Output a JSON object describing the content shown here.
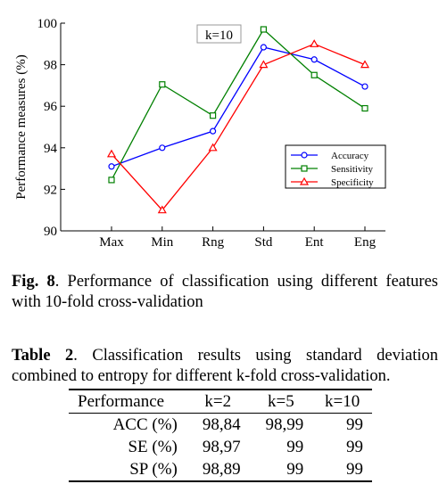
{
  "chart_data": {
    "type": "line",
    "annotation": "k=10",
    "ylabel": "Performance measures (%)",
    "xlabel": "",
    "categories": [
      "Max",
      "Min",
      "Rng",
      "Std",
      "Ent",
      "Eng"
    ],
    "ylim": [
      90,
      100
    ],
    "yticks": [
      90,
      92,
      94,
      96,
      98,
      100
    ],
    "grid": false,
    "legend_position": "right",
    "series": [
      {
        "name": "Accuracy",
        "marker": "circle",
        "color": "#0000ff",
        "values": [
          93.1,
          94.0,
          94.8,
          98.84,
          98.25,
          96.95
        ]
      },
      {
        "name": "Sensitivity",
        "marker": "square",
        "color": "#008000",
        "values": [
          92.45,
          97.05,
          95.55,
          99.7,
          97.5,
          95.9
        ]
      },
      {
        "name": "Specificity",
        "marker": "triangle",
        "color": "#ff0000",
        "values": [
          93.7,
          91.0,
          94.0,
          98.0,
          99.0,
          98.0
        ]
      }
    ]
  },
  "figure_caption": {
    "label": "Fig. 8",
    "text": ". Performance of classification using different features with 10-fold cross-validation"
  },
  "table_caption": {
    "label": "Table 2",
    "text": ". Classification results using standard deviation combined to entropy for different k-fold cross-validation."
  },
  "table": {
    "headers": [
      "Performance",
      "k=2",
      "k=5",
      "k=10"
    ],
    "rows": [
      [
        "ACC (%)",
        "98,84",
        "98,99",
        "99"
      ],
      [
        "SE (%)",
        "98,97",
        "99",
        "99"
      ],
      [
        "SP (%)",
        "98,89",
        "99",
        "99"
      ]
    ]
  }
}
